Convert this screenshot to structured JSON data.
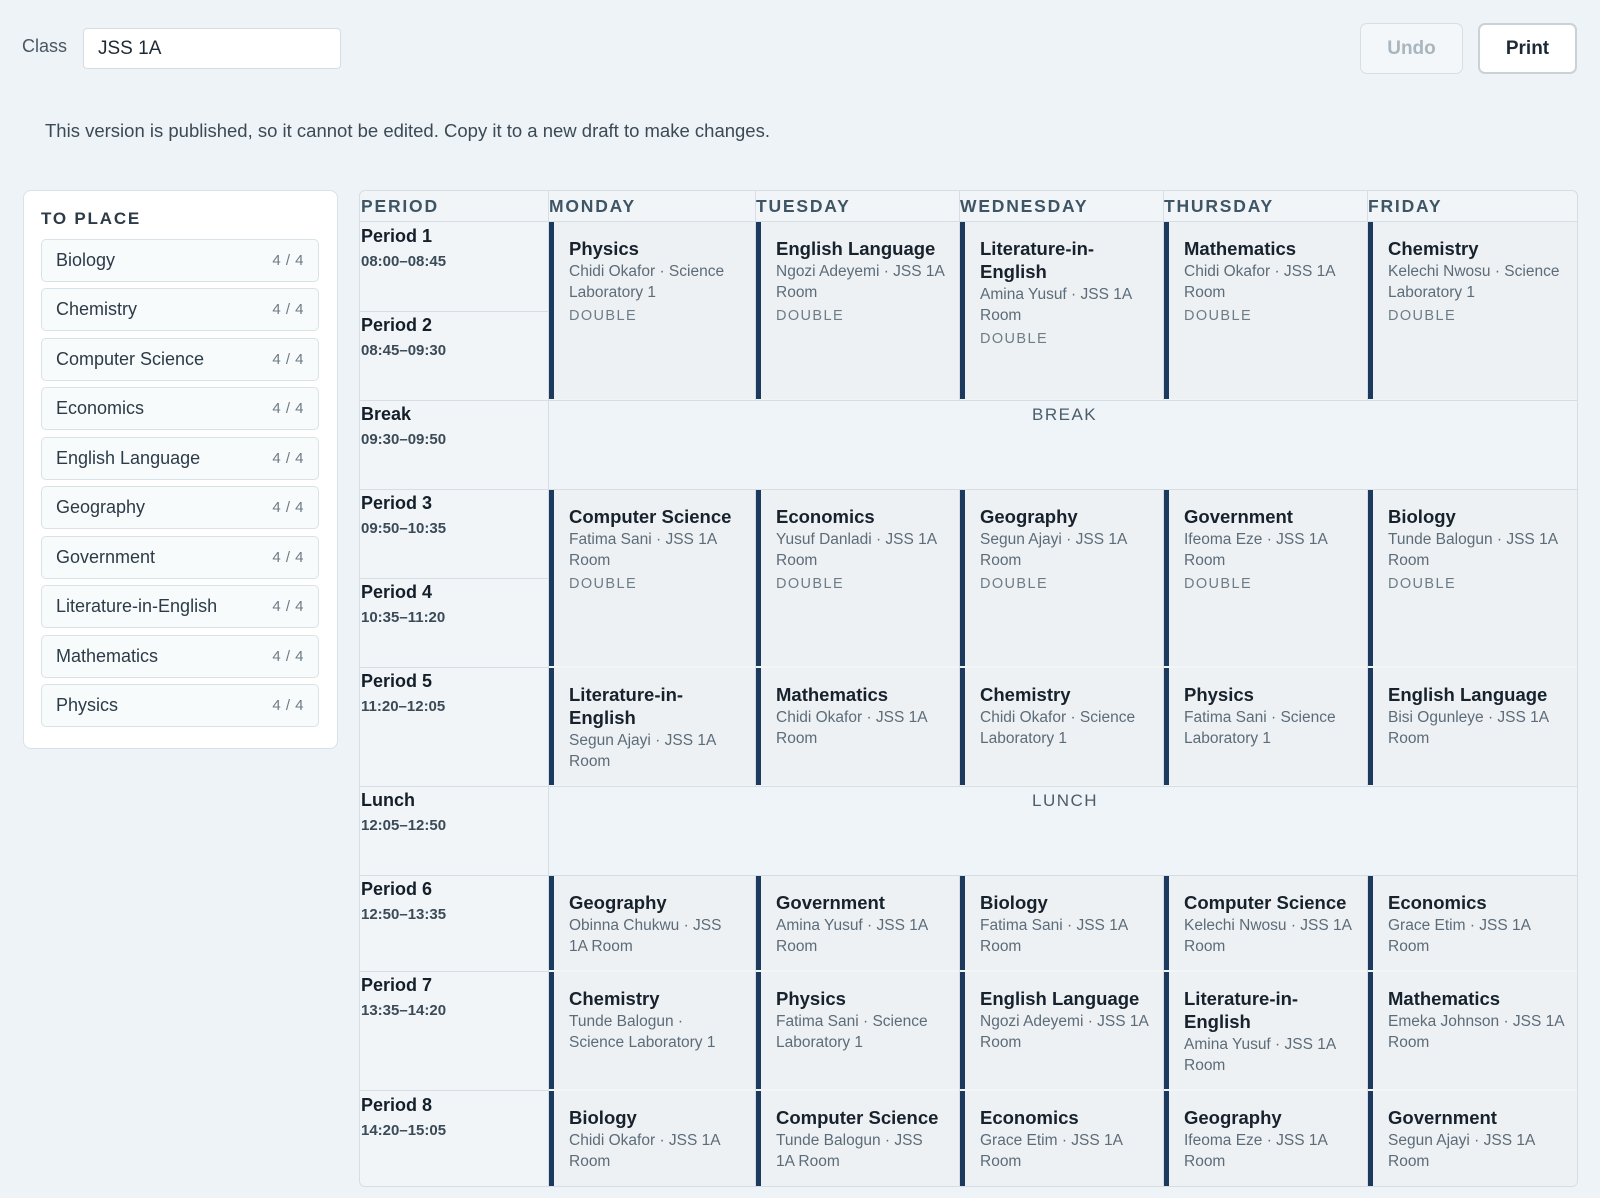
{
  "header": {
    "class_label": "Class",
    "class_value": "JSS 1A",
    "undo_label": "Undo",
    "print_label": "Print"
  },
  "notice": "This version is published, so it cannot be edited. Copy it to a new draft to make changes.",
  "to_place": {
    "title": "TO PLACE",
    "items": [
      {
        "name": "Biology",
        "count": "4 / 4"
      },
      {
        "name": "Chemistry",
        "count": "4 / 4"
      },
      {
        "name": "Computer Science",
        "count": "4 / 4"
      },
      {
        "name": "Economics",
        "count": "4 / 4"
      },
      {
        "name": "English Language",
        "count": "4 / 4"
      },
      {
        "name": "Geography",
        "count": "4 / 4"
      },
      {
        "name": "Government",
        "count": "4 / 4"
      },
      {
        "name": "Literature-in-English",
        "count": "4 / 4"
      },
      {
        "name": "Mathematics",
        "count": "4 / 4"
      },
      {
        "name": "Physics",
        "count": "4 / 4"
      }
    ]
  },
  "timetable": {
    "period_header": "PERIOD",
    "days": [
      "MONDAY",
      "TUESDAY",
      "WEDNESDAY",
      "THURSDAY",
      "FRIDAY"
    ],
    "periods": [
      {
        "name": "Period 1",
        "time": "08:00–08:45"
      },
      {
        "name": "Period 2",
        "time": "08:45–09:30"
      },
      {
        "name": "Break",
        "time": "09:30–09:50"
      },
      {
        "name": "Period 3",
        "time": "09:50–10:35"
      },
      {
        "name": "Period 4",
        "time": "10:35–11:20"
      },
      {
        "name": "Period 5",
        "time": "11:20–12:05"
      },
      {
        "name": "Lunch",
        "time": "12:05–12:50"
      },
      {
        "name": "Period 6",
        "time": "12:50–13:35"
      },
      {
        "name": "Period 7",
        "time": "13:35–14:20"
      },
      {
        "name": "Period 8",
        "time": "14:20–15:05"
      }
    ],
    "break_label": "BREAK",
    "lunch_label": "LUNCH",
    "rows": [
      {
        "lessons": [
          {
            "subject": "Physics",
            "meta": "Chidi Okafor · Science Laboratory 1",
            "tag": "DOUBLE"
          },
          {
            "subject": "English Language",
            "meta": "Ngozi Adeyemi · JSS 1A Room",
            "tag": "DOUBLE"
          },
          {
            "subject": "Literature-in-English",
            "meta": "Amina Yusuf · JSS 1A Room",
            "tag": "DOUBLE"
          },
          {
            "subject": "Mathematics",
            "meta": "Chidi Okafor · JSS 1A Room",
            "tag": "DOUBLE"
          },
          {
            "subject": "Chemistry",
            "meta": "Kelechi Nwosu · Science Laboratory 1",
            "tag": "DOUBLE"
          }
        ]
      },
      {
        "lessons": [
          {
            "subject": "Computer Science",
            "meta": "Fatima Sani · JSS 1A Room",
            "tag": "DOUBLE"
          },
          {
            "subject": "Economics",
            "meta": "Yusuf Danladi · JSS 1A Room",
            "tag": "DOUBLE"
          },
          {
            "subject": "Geography",
            "meta": "Segun Ajayi · JSS 1A Room",
            "tag": "DOUBLE"
          },
          {
            "subject": "Government",
            "meta": "Ifeoma Eze · JSS 1A Room",
            "tag": "DOUBLE"
          },
          {
            "subject": "Biology",
            "meta": "Tunde Balogun · JSS 1A Room",
            "tag": "DOUBLE"
          }
        ]
      },
      {
        "lessons": [
          {
            "subject": "Literature-in-English",
            "meta": "Segun Ajayi · JSS 1A Room",
            "tag": ""
          },
          {
            "subject": "Mathematics",
            "meta": "Chidi Okafor · JSS 1A Room",
            "tag": ""
          },
          {
            "subject": "Chemistry",
            "meta": "Chidi Okafor · Science Laboratory 1",
            "tag": ""
          },
          {
            "subject": "Physics",
            "meta": "Fatima Sani · Science Laboratory 1",
            "tag": ""
          },
          {
            "subject": "English Language",
            "meta": "Bisi Ogunleye · JSS 1A Room",
            "tag": ""
          }
        ]
      },
      {
        "lessons": [
          {
            "subject": "Geography",
            "meta": "Obinna Chukwu · JSS 1A Room",
            "tag": ""
          },
          {
            "subject": "Government",
            "meta": "Amina Yusuf · JSS 1A Room",
            "tag": ""
          },
          {
            "subject": "Biology",
            "meta": "Fatima Sani · JSS 1A Room",
            "tag": ""
          },
          {
            "subject": "Computer Science",
            "meta": "Kelechi Nwosu · JSS 1A Room",
            "tag": ""
          },
          {
            "subject": "Economics",
            "meta": "Grace Etim · JSS 1A Room",
            "tag": ""
          }
        ]
      },
      {
        "lessons": [
          {
            "subject": "Chemistry",
            "meta": "Tunde Balogun · Science Laboratory 1",
            "tag": ""
          },
          {
            "subject": "Physics",
            "meta": "Fatima Sani · Science Laboratory 1",
            "tag": ""
          },
          {
            "subject": "English Language",
            "meta": "Ngozi Adeyemi · JSS 1A Room",
            "tag": ""
          },
          {
            "subject": "Literature-in-English",
            "meta": "Amina Yusuf · JSS 1A Room",
            "tag": ""
          },
          {
            "subject": "Mathematics",
            "meta": "Emeka Johnson · JSS 1A Room",
            "tag": ""
          }
        ]
      },
      {
        "lessons": [
          {
            "subject": "Biology",
            "meta": "Chidi Okafor · JSS 1A Room",
            "tag": ""
          },
          {
            "subject": "Computer Science",
            "meta": "Tunde Balogun · JSS 1A Room",
            "tag": ""
          },
          {
            "subject": "Economics",
            "meta": "Grace Etim · JSS 1A Room",
            "tag": ""
          },
          {
            "subject": "Geography",
            "meta": "Ifeoma Eze · JSS 1A Room",
            "tag": ""
          },
          {
            "subject": "Government",
            "meta": "Segun Ajayi · JSS 1A Room",
            "tag": ""
          }
        ]
      }
    ]
  },
  "colors": {
    "page_bg": "#edf3f6",
    "accent_bar": "#1b3a5e",
    "cell_bg": "#eef1f4"
  }
}
